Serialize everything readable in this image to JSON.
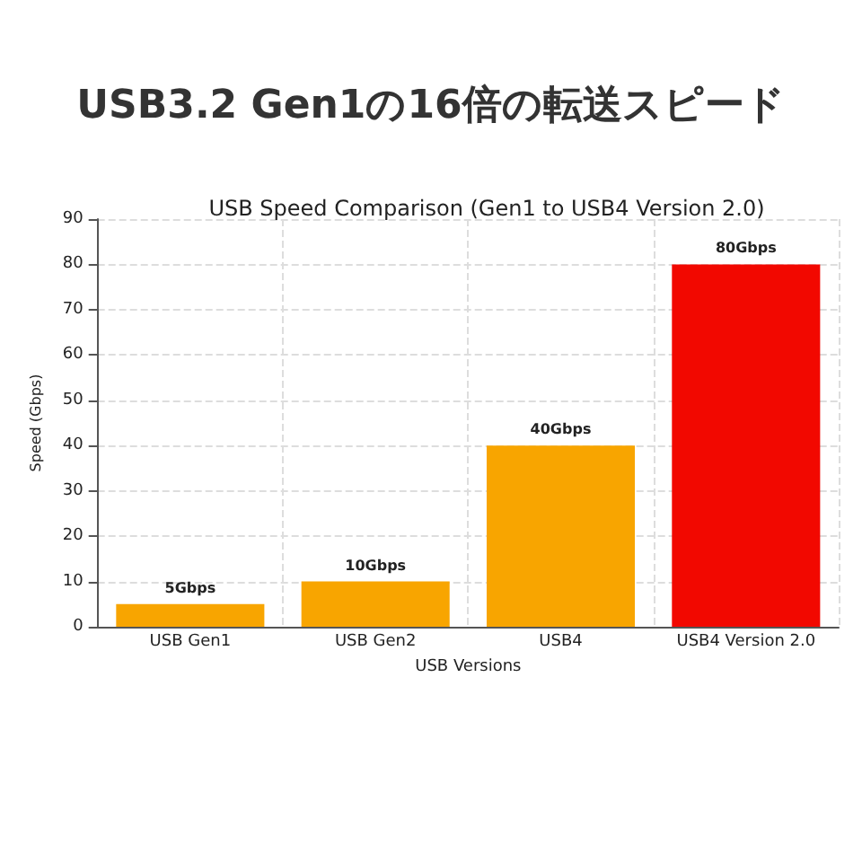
{
  "chart_data": {
    "type": "bar",
    "title": "USB3.2 Gen1の16倍の転送スピード",
    "subtitle": "USB Speed Comparison (Gen1 to USB4 Version 2.0)",
    "xlabel": "USB Versions",
    "ylabel": "Speed (Gbps)",
    "categories": [
      "USB Gen1",
      "USB Gen2",
      "USB4",
      "USB4 Version 2.0"
    ],
    "values": [
      5,
      10,
      40,
      80
    ],
    "colors": [
      "#f8a500",
      "#f8a500",
      "#f8a500",
      "#f20800"
    ],
    "value_labels": [
      "5Gbps",
      "10Gbps",
      "40Gbps",
      "80Gbps"
    ],
    "ylim": [
      0,
      90
    ],
    "yticks": [
      0,
      10,
      20,
      30,
      40,
      50,
      60,
      70,
      80,
      90
    ],
    "grid": true
  }
}
